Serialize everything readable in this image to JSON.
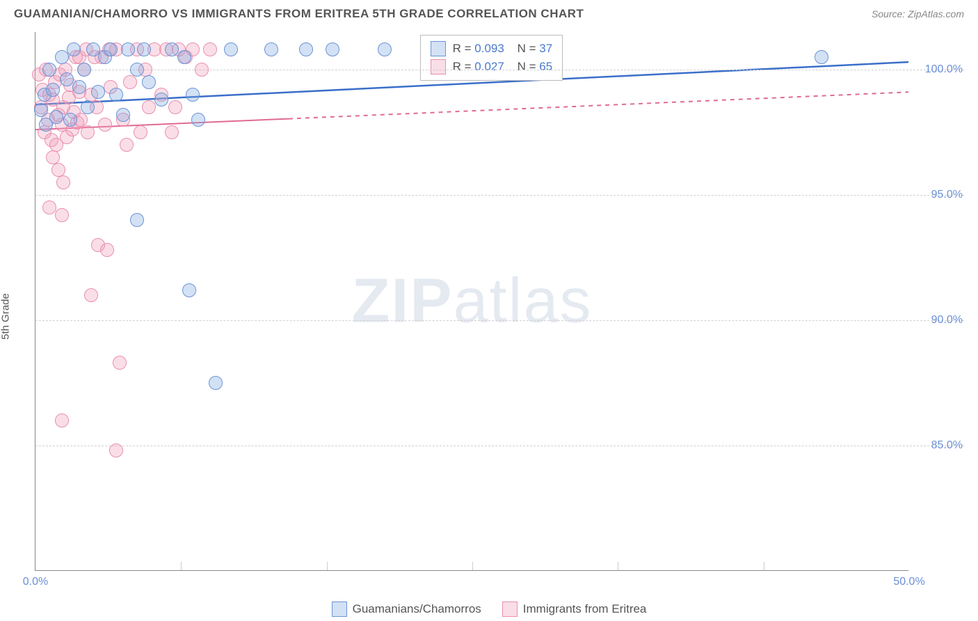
{
  "header": {
    "title": "GUAMANIAN/CHAMORRO VS IMMIGRANTS FROM ERITREA 5TH GRADE CORRELATION CHART",
    "source": "Source: ZipAtlas.com"
  },
  "y_axis_label": "5th Grade",
  "watermark": {
    "bold": "ZIP",
    "light": "atlas"
  },
  "chart": {
    "type": "scatter",
    "xlim": [
      0,
      50
    ],
    "ylim": [
      80,
      101.5
    ],
    "x_ticks": [
      0,
      50
    ],
    "x_tick_labels": [
      "0.0%",
      "50.0%"
    ],
    "x_minor_ticks": [
      8.33,
      16.67,
      25,
      33.33,
      41.67
    ],
    "y_ticks": [
      85,
      90,
      95,
      100
    ],
    "y_tick_labels": [
      "85.0%",
      "90.0%",
      "95.0%",
      "100.0%"
    ],
    "background_color": "#ffffff",
    "grid_color": "#d0d0d0",
    "point_radius": 10,
    "series": {
      "blue": {
        "label": "Guamanians/Chamorros",
        "fill": "rgba(130,170,225,0.35)",
        "stroke": "#6a93d6",
        "R": "0.093",
        "N": "37",
        "trend": {
          "y_at_x0": 98.6,
          "y_at_x50": 100.3,
          "solid_to_x": 50,
          "color": "#3b6fc9",
          "width": 2.5
        },
        "points": [
          [
            0.3,
            98.4
          ],
          [
            0.5,
            99.0
          ],
          [
            0.6,
            97.8
          ],
          [
            0.8,
            100.0
          ],
          [
            1.0,
            99.2
          ],
          [
            1.2,
            98.1
          ],
          [
            1.5,
            100.5
          ],
          [
            1.8,
            99.6
          ],
          [
            2.0,
            98.0
          ],
          [
            2.2,
            100.8
          ],
          [
            2.5,
            99.3
          ],
          [
            2.8,
            100.0
          ],
          [
            3.0,
            98.5
          ],
          [
            3.3,
            100.8
          ],
          [
            3.6,
            99.1
          ],
          [
            4.0,
            100.5
          ],
          [
            4.3,
            100.8
          ],
          [
            4.6,
            99.0
          ],
          [
            5.0,
            98.2
          ],
          [
            5.3,
            100.8
          ],
          [
            5.8,
            100.0
          ],
          [
            6.2,
            100.8
          ],
          [
            6.5,
            99.5
          ],
          [
            7.2,
            98.8
          ],
          [
            7.8,
            100.8
          ],
          [
            8.5,
            100.5
          ],
          [
            9.0,
            99.0
          ],
          [
            9.3,
            98.0
          ],
          [
            5.8,
            94.0
          ],
          [
            8.8,
            91.2
          ],
          [
            10.3,
            87.5
          ],
          [
            11.2,
            100.8
          ],
          [
            13.5,
            100.8
          ],
          [
            15.5,
            100.8
          ],
          [
            17.0,
            100.8
          ],
          [
            20.0,
            100.8
          ],
          [
            45.0,
            100.5
          ]
        ]
      },
      "pink": {
        "label": "Immigrants from Eritrea",
        "fill": "rgba(240,160,185,0.35)",
        "stroke": "#e88fae",
        "R": "0.027",
        "N": "65",
        "trend": {
          "y_at_x0": 97.6,
          "y_at_x50": 99.1,
          "solid_to_x": 14.5,
          "color": "#e06a94",
          "width": 2
        },
        "points": [
          [
            0.2,
            99.8
          ],
          [
            0.3,
            98.5
          ],
          [
            0.4,
            99.2
          ],
          [
            0.5,
            97.5
          ],
          [
            0.6,
            100.0
          ],
          [
            0.7,
            98.0
          ],
          [
            0.8,
            99.0
          ],
          [
            0.9,
            97.2
          ],
          [
            1.0,
            98.8
          ],
          [
            1.1,
            99.5
          ],
          [
            1.2,
            97.0
          ],
          [
            1.3,
            98.2
          ],
          [
            1.4,
            99.8
          ],
          [
            1.5,
            97.8
          ],
          [
            1.6,
            98.5
          ],
          [
            1.7,
            100.0
          ],
          [
            1.8,
            97.3
          ],
          [
            1.9,
            98.9
          ],
          [
            2.0,
            99.4
          ],
          [
            2.1,
            97.6
          ],
          [
            2.2,
            98.3
          ],
          [
            2.3,
            100.5
          ],
          [
            2.4,
            97.9
          ],
          [
            2.5,
            99.1
          ],
          [
            2.6,
            98.0
          ],
          [
            2.8,
            100.0
          ],
          [
            3.0,
            97.5
          ],
          [
            3.2,
            99.0
          ],
          [
            3.5,
            98.5
          ],
          [
            3.8,
            100.5
          ],
          [
            4.0,
            97.8
          ],
          [
            4.3,
            99.3
          ],
          [
            4.6,
            100.8
          ],
          [
            5.0,
            98.0
          ],
          [
            5.4,
            99.5
          ],
          [
            5.8,
            100.8
          ],
          [
            6.0,
            97.5
          ],
          [
            6.3,
            100.0
          ],
          [
            6.8,
            100.8
          ],
          [
            7.2,
            99.0
          ],
          [
            7.5,
            100.8
          ],
          [
            8.0,
            98.5
          ],
          [
            8.2,
            100.8
          ],
          [
            8.6,
            100.5
          ],
          [
            9.0,
            100.8
          ],
          [
            9.5,
            100.0
          ],
          [
            10.0,
            100.8
          ],
          [
            1.0,
            96.5
          ],
          [
            1.3,
            96.0
          ],
          [
            1.6,
            95.5
          ],
          [
            0.8,
            94.5
          ],
          [
            1.5,
            94.2
          ],
          [
            3.6,
            93.0
          ],
          [
            4.1,
            92.8
          ],
          [
            3.2,
            91.0
          ],
          [
            4.8,
            88.3
          ],
          [
            1.5,
            86.0
          ],
          [
            4.6,
            84.8
          ],
          [
            2.5,
            100.5
          ],
          [
            2.9,
            100.8
          ],
          [
            3.4,
            100.5
          ],
          [
            4.2,
            100.8
          ],
          [
            5.2,
            97.0
          ],
          [
            6.5,
            98.5
          ],
          [
            7.8,
            97.5
          ]
        ]
      }
    }
  },
  "legend_box": {
    "r_label": "R =",
    "n_label": "N ="
  }
}
